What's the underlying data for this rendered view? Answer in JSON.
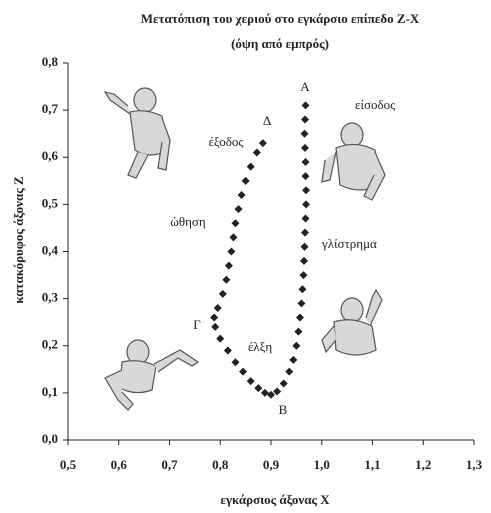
{
  "chart_data": {
    "type": "scatter",
    "title": "Μετατόπιση του χεριού στο εγκάρσιο επίπεδο Z-X",
    "subtitle": "(όψη από εμπρός)",
    "xlabel": "εγκάρσιος άξονας X",
    "ylabel": "κατακόρυφος άξονας Z",
    "color": "#222222",
    "x": [
      0.968,
      0.967,
      0.966,
      0.967,
      0.968,
      0.968,
      0.969,
      0.969,
      0.968,
      0.967,
      0.966,
      0.965,
      0.964,
      0.962,
      0.96,
      0.957,
      0.954,
      0.95,
      0.944,
      0.936,
      0.925,
      0.912,
      0.9,
      0.888,
      0.875,
      0.86,
      0.845,
      0.83,
      0.815,
      0.8,
      0.79,
      0.788,
      0.795,
      0.805,
      0.812,
      0.817,
      0.822,
      0.826,
      0.83,
      0.836,
      0.842,
      0.85,
      0.86,
      0.872,
      0.884
    ],
    "values": [
      0.71,
      0.68,
      0.65,
      0.62,
      0.59,
      0.56,
      0.53,
      0.5,
      0.47,
      0.44,
      0.41,
      0.38,
      0.35,
      0.32,
      0.29,
      0.26,
      0.23,
      0.2,
      0.17,
      0.145,
      0.12,
      0.103,
      0.096,
      0.1,
      0.11,
      0.125,
      0.145,
      0.165,
      0.19,
      0.215,
      0.24,
      0.26,
      0.28,
      0.31,
      0.34,
      0.37,
      0.4,
      0.43,
      0.46,
      0.49,
      0.52,
      0.55,
      0.58,
      0.61,
      0.63
    ],
    "xlim": [
      0.5,
      1.3
    ],
    "ylim": [
      0.0,
      0.8
    ],
    "xticks": [
      {
        "value": 0.5,
        "label": "0,5"
      },
      {
        "value": 0.6,
        "label": "0,6"
      },
      {
        "value": 0.7,
        "label": "0,7"
      },
      {
        "value": 0.8,
        "label": "0,8"
      },
      {
        "value": 0.9,
        "label": "0,9"
      },
      {
        "value": 1.0,
        "label": "1,0"
      },
      {
        "value": 1.1,
        "label": "1,1"
      },
      {
        "value": 1.2,
        "label": "1,2"
      },
      {
        "value": 1.3,
        "label": "1,3"
      }
    ],
    "yticks": [
      {
        "value": 0.0,
        "label": "0,0"
      },
      {
        "value": 0.1,
        "label": "0,1"
      },
      {
        "value": 0.2,
        "label": "0,2"
      },
      {
        "value": 0.3,
        "label": "0,3"
      },
      {
        "value": 0.4,
        "label": "0,4"
      },
      {
        "value": 0.5,
        "label": "0,5"
      },
      {
        "value": 0.6,
        "label": "0,6"
      },
      {
        "value": 0.7,
        "label": "0,7"
      },
      {
        "value": 0.8,
        "label": "0,8"
      }
    ],
    "annotations": [
      "Α",
      "είσοδος",
      "Δ",
      "έξοδος",
      "ώθηση",
      "γλίστρημα",
      "Γ",
      "έλξη",
      "Β"
    ]
  }
}
